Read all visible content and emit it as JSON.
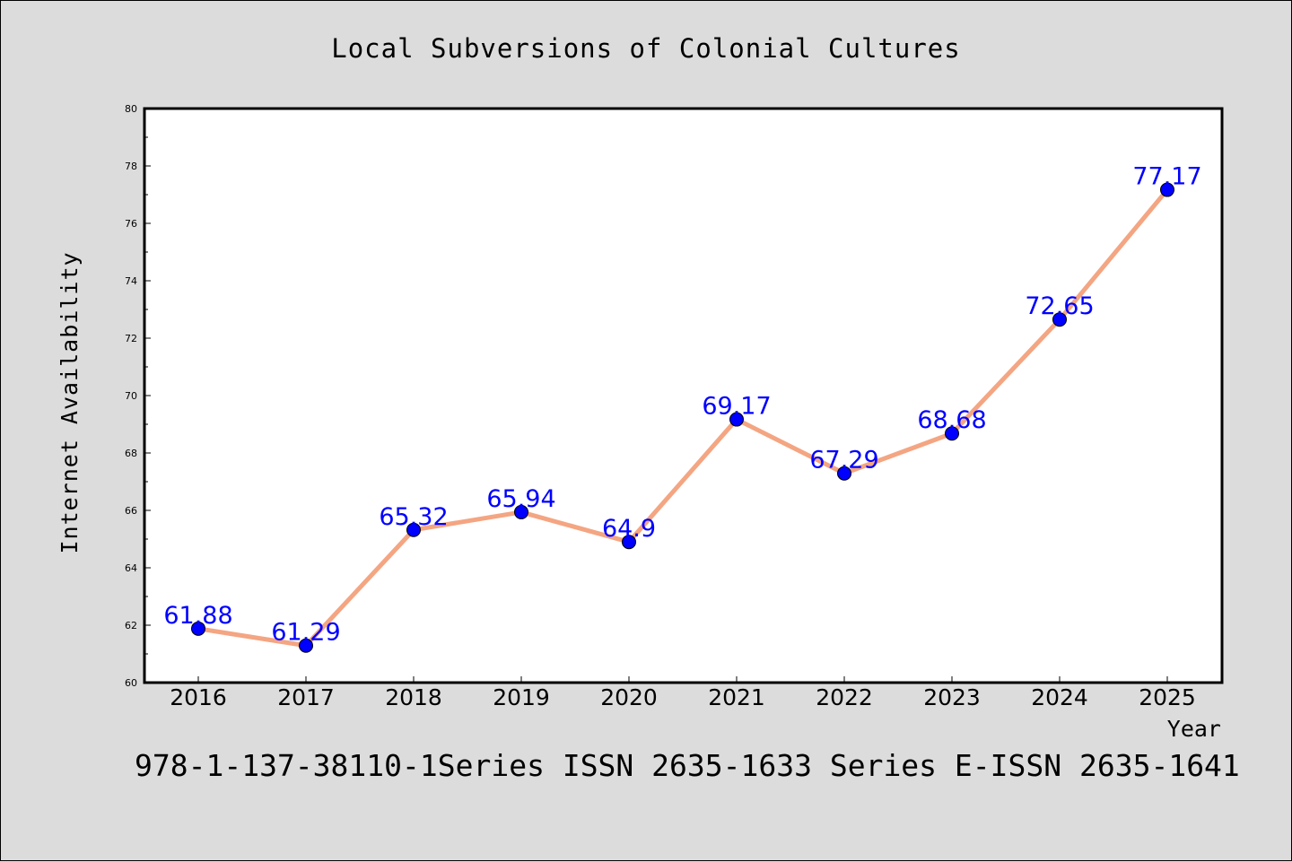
{
  "chart_data": {
    "type": "line",
    "title": "Local Subversions of Colonial Cultures",
    "xlabel": "Year",
    "ylabel": "Internet Availability",
    "categories": [
      "2016",
      "2017",
      "2018",
      "2019",
      "2020",
      "2021",
      "2022",
      "2023",
      "2024",
      "2025"
    ],
    "series": [
      {
        "values": [
          61.88,
          61.29,
          65.32,
          65.94,
          64.9,
          69.17,
          67.29,
          68.68,
          72.65,
          77.17
        ],
        "labels": [
          "61.88",
          "61.29",
          "65.32",
          "65.94",
          "64.9",
          "69.17",
          "67.29",
          "68.68",
          "72.65",
          "77.17"
        ]
      }
    ],
    "ylim": [
      60,
      80
    ],
    "yticks": [
      "60",
      "62",
      "64",
      "66",
      "68",
      "70",
      "72",
      "74",
      "76",
      "78",
      "80"
    ],
    "grid": false,
    "colors": {
      "line": "#f4a582",
      "marker": "#0000ff",
      "label": "#0000ff",
      "background": "#dcdcdc",
      "plot_background": "#ffffff"
    }
  },
  "footer": "978-1-137-38110-1Series ISSN 2635-1633 Series E-ISSN 2635-1641"
}
